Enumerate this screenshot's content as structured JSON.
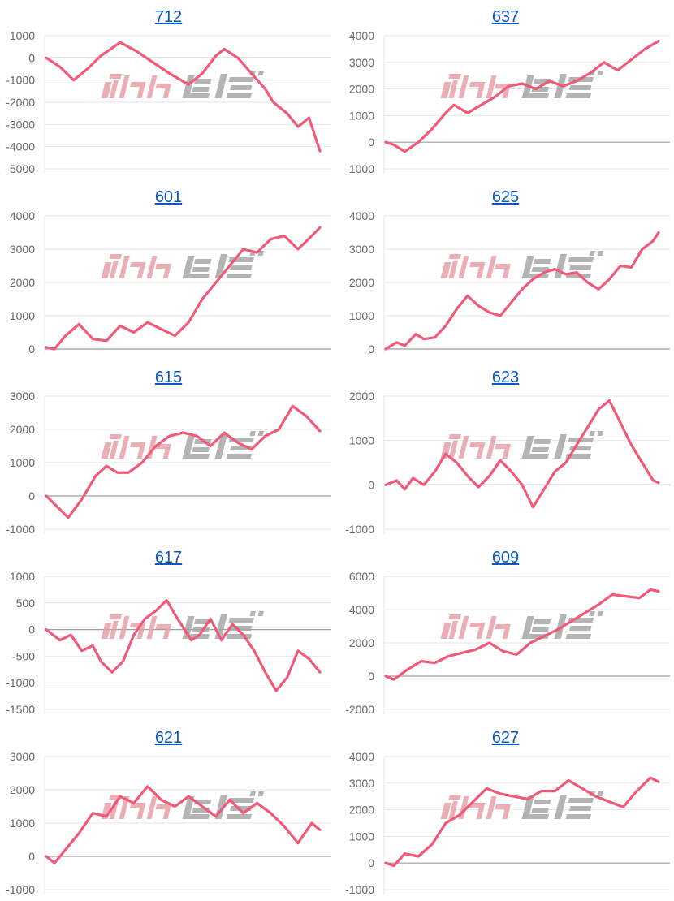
{
  "colors": {
    "line": "#f05a78",
    "grid": "#e6e6e6",
    "zero": "#9e9e9e",
    "tick": "#666666",
    "title": "#0b57c2",
    "watermark_pink": "#e8a0a8",
    "watermark_gray": "#a8a8a8"
  },
  "chart_data": [
    {
      "type": "line",
      "title": "712",
      "ylim": [
        -5000,
        1000
      ],
      "yticks": [
        1000,
        0,
        -1000,
        -2000,
        -3000,
        -4000,
        -5000
      ],
      "x": [
        0,
        5,
        10,
        15,
        20,
        27,
        33,
        39,
        45,
        52,
        57,
        62,
        65,
        70,
        75,
        80,
        83,
        88,
        92,
        96,
        100
      ],
      "values": [
        0,
        -400,
        -1000,
        -500,
        100,
        700,
        300,
        -200,
        -700,
        -1200,
        -700,
        100,
        400,
        0,
        -700,
        -1400,
        -2000,
        -2500,
        -3100,
        -2700,
        -4200
      ]
    },
    {
      "type": "line",
      "title": "637",
      "ylim": [
        -1000,
        4000
      ],
      "yticks": [
        4000,
        3000,
        2000,
        1000,
        0,
        -1000
      ],
      "x": [
        0,
        3,
        7,
        12,
        17,
        22,
        25,
        30,
        35,
        40,
        45,
        50,
        55,
        60,
        65,
        70,
        75,
        80,
        85,
        90,
        95,
        100
      ],
      "values": [
        0,
        -100,
        -350,
        0,
        500,
        1100,
        1400,
        1100,
        1400,
        1700,
        2100,
        2200,
        2000,
        2300,
        2100,
        2300,
        2600,
        3000,
        2700,
        3100,
        3500,
        3800
      ]
    },
    {
      "type": "line",
      "title": "601",
      "ylim": [
        0,
        4000
      ],
      "yticks": [
        4000,
        3000,
        2000,
        1000,
        0
      ],
      "x": [
        0,
        3,
        7,
        12,
        17,
        22,
        27,
        32,
        37,
        42,
        47,
        52,
        57,
        62,
        67,
        72,
        77,
        82,
        87,
        92,
        97,
        100
      ],
      "values": [
        50,
        0,
        400,
        750,
        300,
        250,
        700,
        500,
        800,
        600,
        400,
        800,
        1500,
        2000,
        2500,
        3000,
        2900,
        3300,
        3400,
        3000,
        3400,
        3650
      ]
    },
    {
      "type": "line",
      "title": "625",
      "ylim": [
        0,
        4000
      ],
      "yticks": [
        4000,
        3000,
        2000,
        1000,
        0
      ],
      "x": [
        0,
        4,
        7,
        11,
        14,
        18,
        22,
        26,
        30,
        34,
        38,
        42,
        46,
        50,
        54,
        58,
        62,
        66,
        70,
        74,
        78,
        82,
        86,
        90,
        94,
        98,
        100
      ],
      "values": [
        0,
        200,
        100,
        450,
        300,
        350,
        700,
        1200,
        1600,
        1300,
        1100,
        1000,
        1400,
        1800,
        2100,
        2300,
        2400,
        2250,
        2300,
        2000,
        1800,
        2100,
        2500,
        2450,
        3000,
        3250,
        3500
      ]
    },
    {
      "type": "line",
      "title": "615",
      "ylim": [
        -1000,
        3000
      ],
      "yticks": [
        3000,
        2000,
        1000,
        0,
        -1000
      ],
      "x": [
        0,
        8,
        13,
        18,
        22,
        26,
        30,
        35,
        40,
        45,
        50,
        55,
        60,
        65,
        70,
        75,
        80,
        85,
        90,
        95,
        100
      ],
      "values": [
        0,
        -650,
        -100,
        600,
        900,
        700,
        700,
        1000,
        1500,
        1800,
        1900,
        1800,
        1500,
        1900,
        1600,
        1400,
        1800,
        2000,
        2700,
        2400,
        1950
      ]
    },
    {
      "type": "line",
      "title": "623",
      "ylim": [
        -1000,
        2000
      ],
      "yticks": [
        2000,
        1000,
        0,
        -1000
      ],
      "x": [
        0,
        4,
        7,
        10,
        14,
        18,
        22,
        26,
        30,
        34,
        38,
        42,
        46,
        50,
        54,
        58,
        62,
        66,
        70,
        74,
        78,
        82,
        86,
        90,
        94,
        98,
        100
      ],
      "values": [
        0,
        100,
        -100,
        150,
        0,
        300,
        700,
        500,
        200,
        -50,
        200,
        550,
        300,
        0,
        -500,
        -100,
        300,
        500,
        900,
        1300,
        1700,
        1900,
        1400,
        900,
        500,
        100,
        50
      ]
    },
    {
      "type": "line",
      "title": "617",
      "ylim": [
        -1500,
        1000
      ],
      "yticks": [
        1000,
        500,
        0,
        -500,
        -1000,
        -1500
      ],
      "x": [
        0,
        5,
        9,
        13,
        17,
        20,
        24,
        28,
        32,
        36,
        40,
        44,
        48,
        53,
        56,
        60,
        64,
        68,
        72,
        76,
        80,
        84,
        88,
        92,
        96,
        100
      ],
      "values": [
        0,
        -200,
        -100,
        -400,
        -300,
        -600,
        -800,
        -600,
        -100,
        200,
        350,
        550,
        200,
        -200,
        -100,
        200,
        -200,
        100,
        -100,
        -400,
        -800,
        -1150,
        -900,
        -400,
        -550,
        -800
      ]
    },
    {
      "type": "line",
      "title": "609",
      "ylim": [
        -2000,
        6000
      ],
      "yticks": [
        6000,
        4000,
        2000,
        0,
        -2000
      ],
      "x": [
        0,
        3,
        8,
        13,
        18,
        23,
        28,
        33,
        38,
        43,
        48,
        53,
        58,
        63,
        68,
        73,
        78,
        83,
        88,
        93,
        97,
        100
      ],
      "values": [
        0,
        -200,
        400,
        900,
        800,
        1200,
        1400,
        1600,
        2000,
        1500,
        1300,
        2000,
        2400,
        2800,
        3300,
        3800,
        4300,
        4900,
        4800,
        4700,
        5200,
        5100
      ]
    },
    {
      "type": "line",
      "title": "621",
      "ylim": [
        -1000,
        3000
      ],
      "yticks": [
        3000,
        2000,
        1000,
        0,
        -1000
      ],
      "x": [
        0,
        3,
        7,
        12,
        17,
        22,
        27,
        32,
        37,
        42,
        47,
        52,
        57,
        62,
        67,
        72,
        77,
        82,
        87,
        92,
        97,
        100
      ],
      "values": [
        0,
        -200,
        200,
        700,
        1300,
        1200,
        1800,
        1600,
        2100,
        1700,
        1500,
        1800,
        1500,
        1200,
        1700,
        1300,
        1600,
        1300,
        900,
        400,
        1000,
        800
      ]
    },
    {
      "type": "line",
      "title": "627",
      "ylim": [
        -1000,
        4000
      ],
      "yticks": [
        4000,
        3000,
        2000,
        1000,
        0,
        -1000
      ],
      "x": [
        0,
        3,
        7,
        12,
        17,
        22,
        27,
        32,
        37,
        42,
        47,
        52,
        57,
        62,
        67,
        72,
        77,
        82,
        87,
        92,
        97,
        100
      ],
      "values": [
        0,
        -100,
        350,
        250,
        700,
        1500,
        1800,
        2300,
        2800,
        2600,
        2500,
        2400,
        2700,
        2700,
        3100,
        2800,
        2500,
        2300,
        2100,
        2700,
        3200,
        3050
      ]
    }
  ]
}
